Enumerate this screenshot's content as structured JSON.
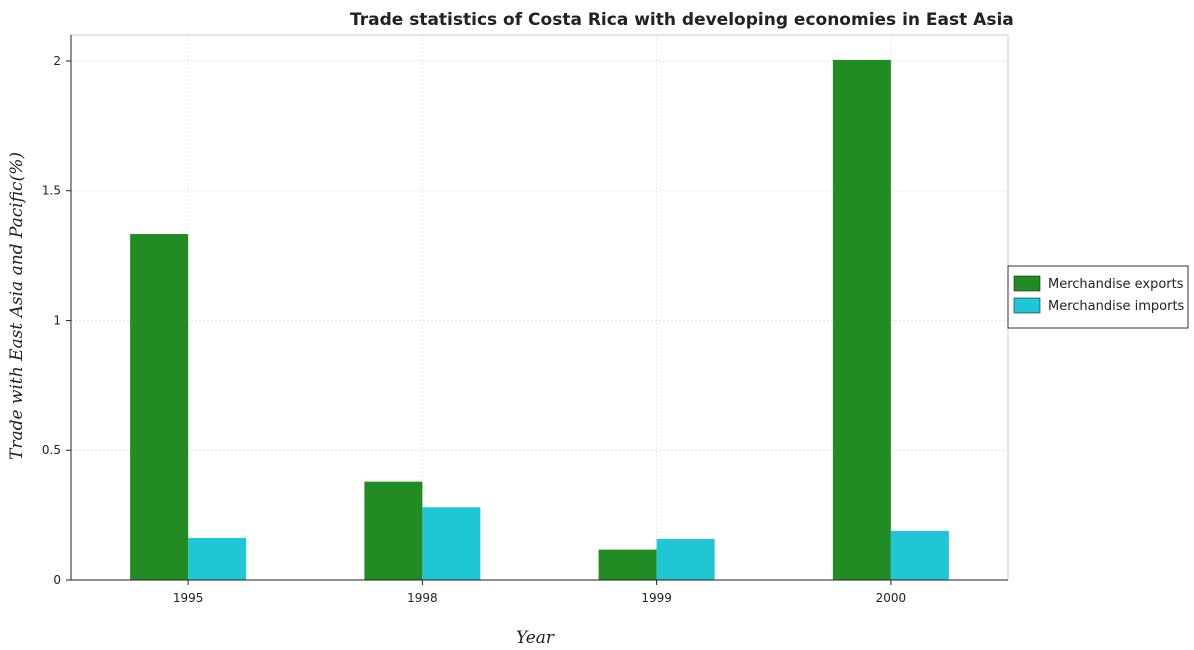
{
  "chart_data": {
    "type": "bar",
    "title": "Trade statistics of Costa Rica with developing economies in East Asia",
    "xlabel": "Year",
    "ylabel": "Trade with East Asia and Pacific(%)",
    "categories": [
      "1995",
      "1998",
      "1999",
      "2000"
    ],
    "series": [
      {
        "name": "Merchandise exports",
        "color": "#238b23",
        "values": [
          1.333,
          0.379,
          0.117,
          2.004
        ]
      },
      {
        "name": "Merchandise imports",
        "color": "#1ec6d6",
        "values": [
          0.162,
          0.28,
          0.158,
          0.189
        ]
      }
    ],
    "ylim": [
      0,
      2.1
    ],
    "yticks": [
      0,
      0.5,
      1,
      1.5,
      2
    ],
    "ytick_labels": [
      "0",
      "0.5",
      "1",
      "1.5",
      "2"
    ],
    "grid": true,
    "legend_position": "right"
  }
}
